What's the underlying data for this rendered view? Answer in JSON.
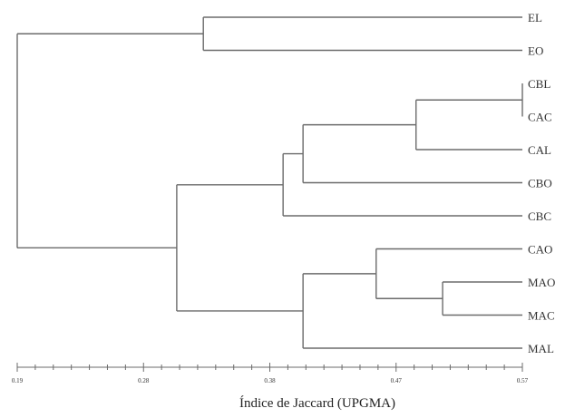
{
  "chart_data": {
    "type": "dendrogram",
    "method": "UPGMA",
    "xlabel": "Índice de Jaccard (UPGMA)",
    "x_ticks": [
      "0.19",
      "0.28",
      "0.38",
      "0.47",
      "0.57"
    ],
    "xlim": [
      0.19,
      0.57
    ],
    "leaves": [
      "EL",
      "EO",
      "CBL",
      "CAC",
      "CAL",
      "CBO",
      "CBC",
      "CAO",
      "MAO",
      "MAC",
      "MAL"
    ],
    "merges": [
      {
        "id": "n1",
        "children": [
          "CBL",
          "CAC"
        ],
        "height": 0.57
      },
      {
        "id": "n2",
        "children": [
          "MAO",
          "MAC"
        ],
        "height": 0.51
      },
      {
        "id": "n3",
        "children": [
          "n1",
          "CAL"
        ],
        "height": 0.49
      },
      {
        "id": "n4",
        "children": [
          "CAO",
          "n2"
        ],
        "height": 0.46
      },
      {
        "id": "n5",
        "children": [
          "n3",
          "CBO"
        ],
        "height": 0.405
      },
      {
        "id": "n6",
        "children": [
          "n4",
          "MAL"
        ],
        "height": 0.405
      },
      {
        "id": "n7",
        "children": [
          "n5",
          "CBC"
        ],
        "height": 0.39
      },
      {
        "id": "n8",
        "children": [
          "EL",
          "EO"
        ],
        "height": 0.33
      },
      {
        "id": "n9",
        "children": [
          "n7",
          "n6"
        ],
        "height": 0.31
      },
      {
        "id": "n10",
        "children": [
          "n8",
          "n9"
        ],
        "height": 0.19
      }
    ]
  }
}
